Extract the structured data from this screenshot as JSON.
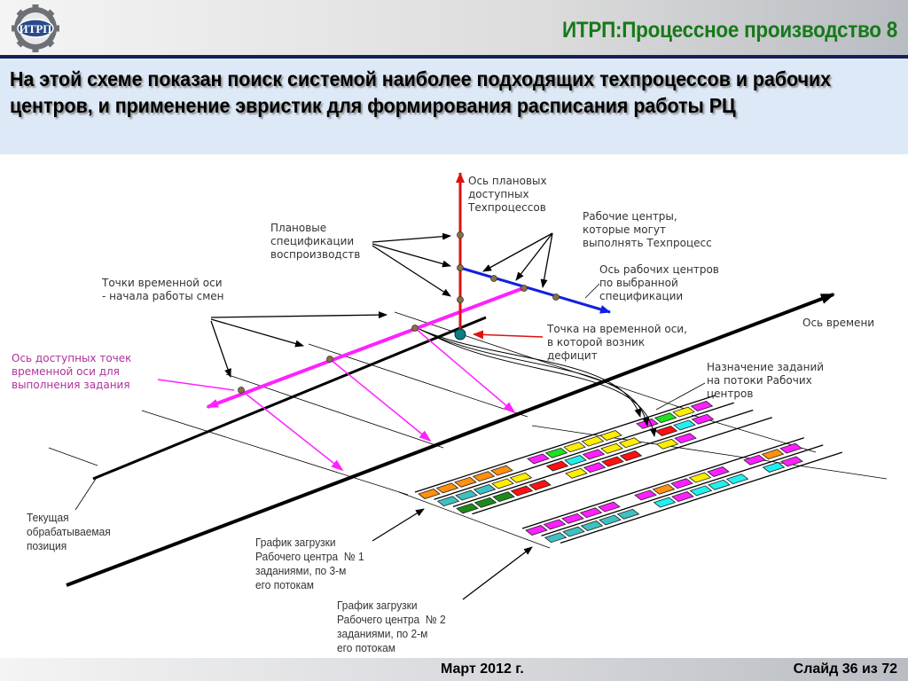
{
  "header": {
    "logo_text": "ИТРП",
    "title": "ИТРП:Процессное производство 8"
  },
  "subtitle": "На этой схеме показан поиск системой наиболее подходящих техпроцессов и рабочих центров, и применение эвристик для формирования расписания работы РЦ",
  "labels": {
    "tech_axis": "Ось плановых\nдоступных\nТехпроцессов",
    "plan_specs": "Плановые\nспецификации\nвоспроизводств",
    "work_centers": "Рабочие центры,\nкоторые могут\nвыполнять Техпроцесс",
    "wc_axis": "Ось рабочих центров\nпо выбранной\nспецификации",
    "shift_points": "Точки временной оси\n- начала работы смен",
    "time_axis": "Ось времени",
    "deficit_point": "Точка на временной оси,\nв которой возник\nдефицит",
    "available_points": "Ось доступных точек\nвременной оси для\nвыполнения задания",
    "assignment": "Назначение заданий\nна потоки Рабочих\nцентров",
    "current_position": "Текущая\nобрабатываемая\nпозиция",
    "wc1_chart": "График загрузки\nРабочего центра  № 1\nзаданиями, по 3-м\nего потокам",
    "wc2_chart": "График загрузки\nРабочего центра  № 2\nзаданиями, по 2-м\nего потокам"
  },
  "colors": {
    "title_green": "#17791a",
    "tech_axis": "#e01010",
    "wc_axis": "#1020e0",
    "available_axis": "#ff20ff",
    "deficit_point": "#0e7e7e",
    "available_label": "#b0309a",
    "O": "#ff9010",
    "M": "#ff20ff",
    "G": "#20e020",
    "Y": "#ffee00",
    "T": "#40c0c0",
    "C": "#20f0f0",
    "R": "#ff1010",
    "D": "#1a8a1a"
  },
  "schedules": {
    "wc1": [
      "OOOOO_MGYYY_MGYM",
      "TTTYY_RCMYY_RCM",
      "DDDRR_YMRR_YM"
    ],
    "wc2": [
      "MMMMM_MOMYM_MOM",
      "TTTTT_CMCCC_CM"
    ]
  },
  "footer": {
    "date": "Март 2012 г.",
    "slide": "Слайд 36 из 72"
  }
}
